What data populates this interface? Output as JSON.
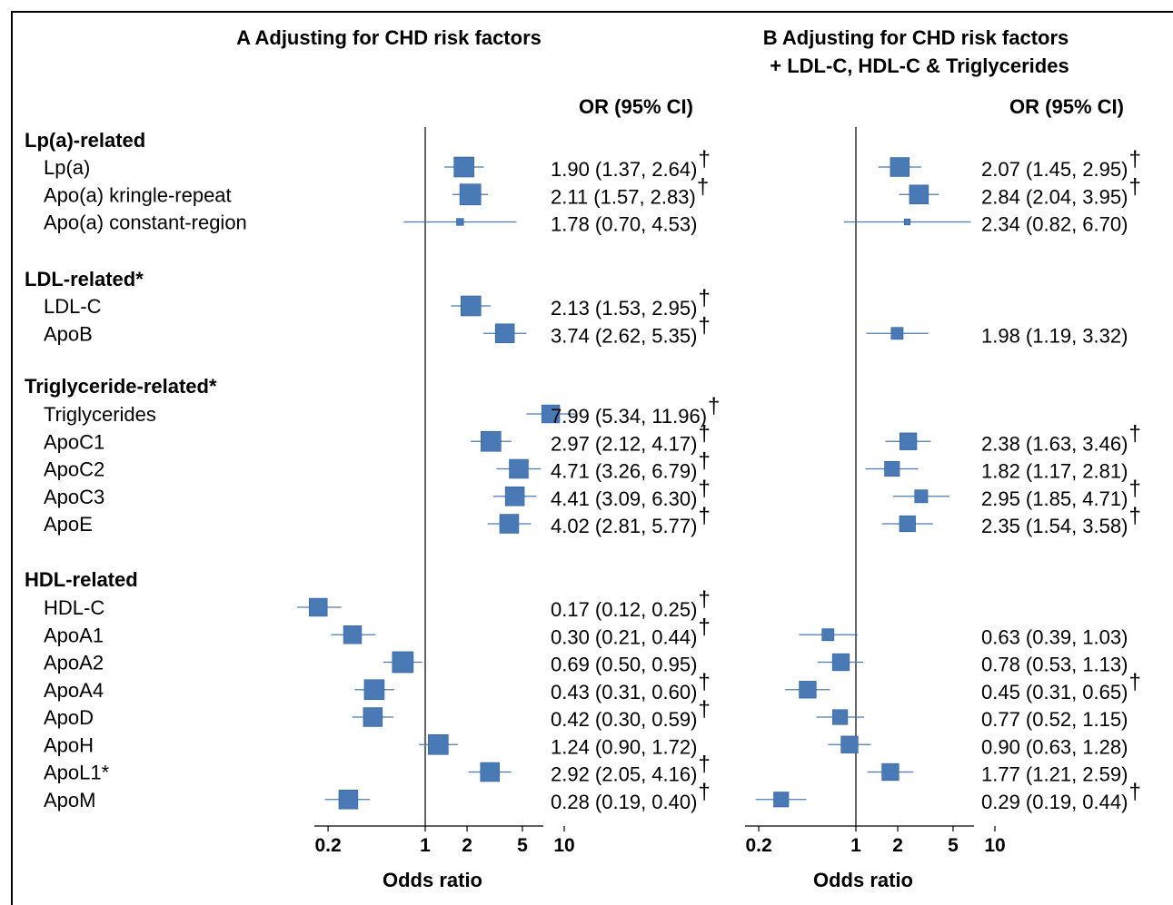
{
  "chart_data": {
    "type": "forest",
    "x_scale": "log",
    "xlabel": "Odds ratio",
    "x_ticks": [
      0.2,
      1,
      2,
      5,
      10
    ],
    "x_tick_labels": [
      "0.2",
      "1",
      "2",
      "5",
      "10"
    ],
    "xlim": [
      0.09,
      15
    ],
    "reference_line": 1,
    "marker_color": "#4a7ab5",
    "panels": [
      {
        "id": "A",
        "title": "A Adjusting for CHD risk factors",
        "title_line2": "",
        "or_header": "OR (95% CI)"
      },
      {
        "id": "B",
        "title": "B Adjusting for CHD risk factors",
        "title_line2": "+ LDL-C, HDL-C & Triglycerides",
        "or_header": "OR (95% CI)"
      }
    ],
    "groups": [
      {
        "name": "Lp(a)-related",
        "rows": [
          {
            "label": "Lp(a)",
            "A": {
              "or": 1.9,
              "lo": 1.37,
              "hi": 2.64,
              "text": "1.90 (1.37, 2.64)",
              "dagger": true,
              "size": 1.0
            },
            "B": {
              "or": 2.07,
              "lo": 1.45,
              "hi": 2.95,
              "text": "2.07 (1.45, 2.95)",
              "dagger": true,
              "size": 0.95
            }
          },
          {
            "label": "Apo(a) kringle-repeat",
            "A": {
              "or": 2.11,
              "lo": 1.57,
              "hi": 2.83,
              "text": "2.11 (1.57, 2.83)",
              "dagger": true,
              "size": 1.05
            },
            "B": {
              "or": 2.84,
              "lo": 2.04,
              "hi": 3.95,
              "text": "2.84 (2.04, 3.95)",
              "dagger": true,
              "size": 0.95
            }
          },
          {
            "label": "Apo(a) constant-region",
            "A": {
              "or": 1.78,
              "lo": 0.7,
              "hi": 4.53,
              "text": "1.78 (0.70, 4.53)",
              "dagger": false,
              "size": 0.35
            },
            "B": {
              "or": 2.34,
              "lo": 0.82,
              "hi": 6.7,
              "text": "2.34 (0.82, 6.70)",
              "dagger": false,
              "size": 0.3
            }
          }
        ]
      },
      {
        "name": "LDL-related*",
        "rows": [
          {
            "label": "LDL-C",
            "A": {
              "or": 2.13,
              "lo": 1.53,
              "hi": 2.95,
              "text": "2.13 (1.53, 2.95)",
              "dagger": true,
              "size": 1.0
            },
            "B": null
          },
          {
            "label": "ApoB",
            "A": {
              "or": 3.74,
              "lo": 2.62,
              "hi": 5.35,
              "text": "3.74 (2.62, 5.35)",
              "dagger": true,
              "size": 0.95
            },
            "B": {
              "or": 1.98,
              "lo": 1.19,
              "hi": 3.32,
              "text": "1.98 (1.19, 3.32)",
              "dagger": false,
              "size": 0.6
            }
          }
        ]
      },
      {
        "name": "Triglyceride-related*",
        "rows": [
          {
            "label": "Triglycerides",
            "A": {
              "or": 7.99,
              "lo": 5.34,
              "hi": 11.96,
              "text": "7.99 (5.34, 11.96)",
              "dagger": true,
              "size": 0.9
            },
            "B": null
          },
          {
            "label": "ApoC1",
            "A": {
              "or": 2.97,
              "lo": 2.12,
              "hi": 4.17,
              "text": "2.97 (2.12, 4.17)",
              "dagger": true,
              "size": 1.0
            },
            "B": {
              "or": 2.38,
              "lo": 1.63,
              "hi": 3.46,
              "text": "2.38 (1.63, 3.46)",
              "dagger": true,
              "size": 0.85
            }
          },
          {
            "label": "ApoC2",
            "A": {
              "or": 4.71,
              "lo": 3.26,
              "hi": 6.79,
              "text": "4.71 (3.26, 6.79)",
              "dagger": true,
              "size": 0.95
            },
            "B": {
              "or": 1.82,
              "lo": 1.17,
              "hi": 2.81,
              "text": "1.82 (1.17, 2.81)",
              "dagger": false,
              "size": 0.75
            }
          },
          {
            "label": "ApoC3",
            "A": {
              "or": 4.41,
              "lo": 3.09,
              "hi": 6.3,
              "text": "4.41 (3.09, 6.30)",
              "dagger": true,
              "size": 0.95
            },
            "B": {
              "or": 2.95,
              "lo": 1.85,
              "hi": 4.71,
              "text": "2.95 (1.85, 4.71)",
              "dagger": true,
              "size": 0.65
            }
          },
          {
            "label": "ApoE",
            "A": {
              "or": 4.02,
              "lo": 2.81,
              "hi": 5.77,
              "text": "4.02 (2.81, 5.77)",
              "dagger": true,
              "size": 0.95
            },
            "B": {
              "or": 2.35,
              "lo": 1.54,
              "hi": 3.58,
              "text": "2.35 (1.54, 3.58)",
              "dagger": true,
              "size": 0.8
            }
          }
        ]
      },
      {
        "name": "HDL-related",
        "rows": [
          {
            "label": "HDL-C",
            "A": {
              "or": 0.17,
              "lo": 0.12,
              "hi": 0.25,
              "text": "0.17 (0.12, 0.25)",
              "dagger": true,
              "size": 0.9
            },
            "B": null
          },
          {
            "label": "ApoA1",
            "A": {
              "or": 0.3,
              "lo": 0.21,
              "hi": 0.44,
              "text": "0.30 (0.21, 0.44)",
              "dagger": true,
              "size": 0.9
            },
            "B": {
              "or": 0.63,
              "lo": 0.39,
              "hi": 1.03,
              "text": "0.63 (0.39, 1.03)",
              "dagger": false,
              "size": 0.6
            }
          },
          {
            "label": "ApoA2",
            "A": {
              "or": 0.69,
              "lo": 0.5,
              "hi": 0.95,
              "text": "0.69 (0.50, 0.95)",
              "dagger": false,
              "size": 1.05
            },
            "B": {
              "or": 0.78,
              "lo": 0.53,
              "hi": 1.13,
              "text": "0.78 (0.53, 1.13)",
              "dagger": false,
              "size": 0.85
            }
          },
          {
            "label": "ApoA4",
            "A": {
              "or": 0.43,
              "lo": 0.31,
              "hi": 0.6,
              "text": "0.43 (0.31, 0.60)",
              "dagger": true,
              "size": 1.0
            },
            "B": {
              "or": 0.45,
              "lo": 0.31,
              "hi": 0.65,
              "text": "0.45 (0.31, 0.65)",
              "dagger": true,
              "size": 0.85
            }
          },
          {
            "label": "ApoD",
            "A": {
              "or": 0.42,
              "lo": 0.3,
              "hi": 0.59,
              "text": "0.42 (0.30, 0.59)",
              "dagger": true,
              "size": 0.95
            },
            "B": {
              "or": 0.77,
              "lo": 0.52,
              "hi": 1.15,
              "text": "0.77 (0.52, 1.15)",
              "dagger": false,
              "size": 0.75
            }
          },
          {
            "label": "ApoH",
            "A": {
              "or": 1.24,
              "lo": 0.9,
              "hi": 1.72,
              "text": "1.24 (0.90, 1.72)",
              "dagger": false,
              "size": 1.0
            },
            "B": {
              "or": 0.9,
              "lo": 0.63,
              "hi": 1.28,
              "text": "0.90 (0.63, 1.28)",
              "dagger": false,
              "size": 0.85
            }
          },
          {
            "label": "ApoL1*",
            "A": {
              "or": 2.92,
              "lo": 2.05,
              "hi": 4.16,
              "text": "2.92 (2.05, 4.16)",
              "dagger": true,
              "size": 0.95
            },
            "B": {
              "or": 1.77,
              "lo": 1.21,
              "hi": 2.59,
              "text": "1.77 (1.21, 2.59)",
              "dagger": false,
              "size": 0.85
            }
          },
          {
            "label": "ApoM",
            "A": {
              "or": 0.28,
              "lo": 0.19,
              "hi": 0.4,
              "text": "0.28 (0.19, 0.40)",
              "dagger": true,
              "size": 0.95
            },
            "B": {
              "or": 0.29,
              "lo": 0.19,
              "hi": 0.44,
              "text": "0.29 (0.19, 0.44)",
              "dagger": true,
              "size": 0.75
            }
          }
        ]
      }
    ],
    "dagger_symbol": "†"
  }
}
